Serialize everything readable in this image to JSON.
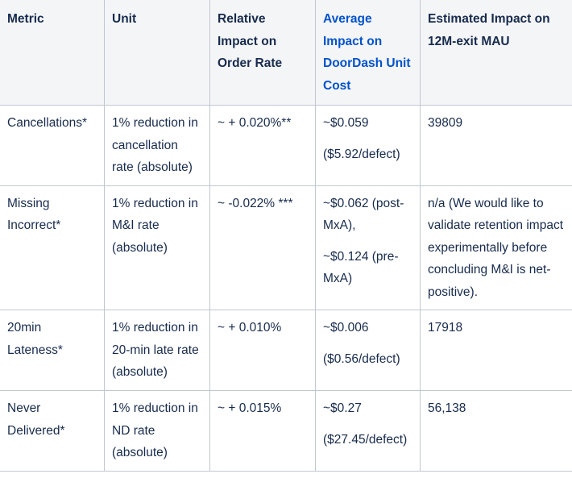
{
  "headers": [
    "Metric",
    "Unit",
    "Relative Impact on Order Rate",
    "Average Impact on DoorDash Unit Cost",
    "Estimated Impact on 12M-exit MAU"
  ],
  "rows": [
    {
      "metric": "Cancellations*",
      "unit": "1% reduction in cancellation rate (absolute)",
      "relative_impact": "~ + 0.020%**",
      "cost": [
        "~$0.059",
        "($5.92/defect)"
      ],
      "mau": "39809"
    },
    {
      "metric": "Missing Incorrect*",
      "unit": "1% reduction in M&I rate (absolute)",
      "relative_impact": "~ -0.022% ***",
      "cost": [
        "~$0.062 (post-MxA),",
        "~$0.124 (pre-MxA)"
      ],
      "mau": "n/a (We would like to validate retention impact experimentally before concluding M&I is net-positive)."
    },
    {
      "metric": "20min Lateness*",
      "unit": "1% reduction in 20-min late rate (absolute)",
      "relative_impact": "~ + 0.010%",
      "cost": [
        "~$0.006",
        "($0.56/defect)"
      ],
      "mau": "17918"
    },
    {
      "metric": "Never Delivered*",
      "unit": "1% reduction in ND rate (absolute)",
      "relative_impact": "~ + 0.015%",
      "cost": [
        "~$0.27",
        "($27.45/defect)"
      ],
      "mau": "56,138"
    }
  ],
  "colors": {
    "header_bg": "#f4f5f7",
    "border": "#c1c7d0",
    "text": "#172b4d",
    "highlight_header": "#0052cc"
  }
}
